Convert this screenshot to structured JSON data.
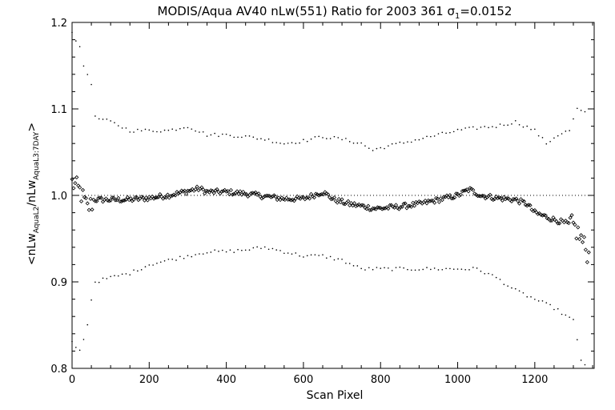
{
  "chart_data": {
    "type": "scatter",
    "title_main": "MODIS/Aqua AV40 nLw(551) Ratio for 2003 361 ",
    "title_sigma": "σ",
    "title_sigma_sub": "1",
    "title_value": "=0.0152",
    "xlabel": "Scan Pixel",
    "ylabel_parts": {
      "open": "<nLw",
      "sub1": "AquaL2",
      "mid": "/nLw",
      "sub2": "AquaL3:7DAY",
      "close": ">"
    },
    "xlim": [
      0,
      1354
    ],
    "ylim": [
      0.8,
      1.2
    ],
    "x_ticks": [
      0,
      200,
      400,
      600,
      800,
      1000,
      1200
    ],
    "x_tick_labels": [
      "0",
      "200",
      "400",
      "600",
      "800",
      "1000",
      "1200"
    ],
    "y_ticks": [
      0.8,
      0.9,
      1.0,
      1.1,
      1.2
    ],
    "y_tick_labels": [
      "0.8",
      "0.9",
      "1.0",
      "1.1",
      "1.2"
    ],
    "reference_line": 1.0,
    "grid": false,
    "mean_ratio": {
      "x": [
        0,
        20,
        40,
        60,
        100,
        150,
        200,
        250,
        300,
        330,
        350,
        400,
        450,
        500,
        550,
        600,
        650,
        680,
        720,
        760,
        780,
        800,
        850,
        900,
        950,
        1000,
        1030,
        1060,
        1100,
        1150,
        1180,
        1200,
        1250,
        1300,
        1320,
        1340
      ],
      "y": [
        1.015,
        1.005,
        0.985,
        0.995,
        0.995,
        0.995,
        0.997,
        1.0,
        1.005,
        1.008,
        1.004,
        1.004,
        1.002,
        0.999,
        0.996,
        0.996,
        1.004,
        0.995,
        0.99,
        0.987,
        0.985,
        0.985,
        0.987,
        0.99,
        0.995,
        1.0,
        1.007,
        1.0,
        0.997,
        0.995,
        0.99,
        0.98,
        0.972,
        0.965,
        0.95,
        0.93
      ]
    },
    "upper_band": {
      "x": [
        0,
        20,
        30,
        50,
        60,
        100,
        150,
        200,
        250,
        300,
        350,
        400,
        450,
        500,
        550,
        600,
        650,
        700,
        750,
        780,
        800,
        850,
        900,
        950,
        1000,
        1050,
        1100,
        1150,
        1200,
        1230,
        1260,
        1290,
        1310,
        1330
      ],
      "y": [
        1.19,
        1.17,
        1.15,
        1.13,
        1.09,
        1.085,
        1.075,
        1.075,
        1.075,
        1.08,
        1.07,
        1.07,
        1.068,
        1.065,
        1.06,
        1.063,
        1.068,
        1.065,
        1.06,
        1.052,
        1.055,
        1.06,
        1.065,
        1.07,
        1.075,
        1.078,
        1.08,
        1.085,
        1.075,
        1.06,
        1.07,
        1.075,
        1.1,
        1.095
      ]
    },
    "lower_band": {
      "x": [
        0,
        20,
        40,
        50,
        60,
        100,
        150,
        200,
        250,
        300,
        350,
        400,
        450,
        500,
        550,
        600,
        650,
        700,
        750,
        800,
        850,
        900,
        950,
        1000,
        1050,
        1100,
        1150,
        1200,
        1250,
        1300,
        1320,
        1330
      ],
      "y": [
        0.83,
        0.82,
        0.85,
        0.88,
        0.9,
        0.905,
        0.91,
        0.92,
        0.925,
        0.93,
        0.935,
        0.935,
        0.937,
        0.94,
        0.935,
        0.93,
        0.93,
        0.925,
        0.915,
        0.915,
        0.915,
        0.915,
        0.915,
        0.915,
        0.915,
        0.905,
        0.89,
        0.88,
        0.87,
        0.855,
        0.81,
        0.805
      ]
    }
  }
}
